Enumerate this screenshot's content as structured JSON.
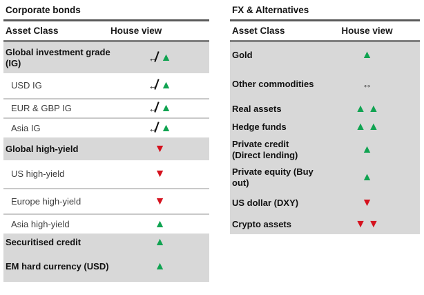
{
  "colors": {
    "green": "#10a351",
    "red": "#d5121e",
    "section_row_bg": "#d8d8d8",
    "title_rule": "#5a5a5a",
    "header_rule": "#7f7f7f",
    "sub_separator": "#c9c9c9"
  },
  "icons": {
    "up_triangle": "▲",
    "down_triangle": "▼",
    "neutral_arrow": "↔"
  },
  "tables": [
    {
      "title": "Corporate bonds",
      "columns": {
        "asset": "Asset Class",
        "view": "House view"
      },
      "rows": [
        {
          "label": "Global investment grade (IG)",
          "style": "section",
          "view": "neutral-to-up",
          "sep": false
        },
        {
          "label": "USD IG",
          "style": "sub",
          "view": "neutral-to-up",
          "sep": true
        },
        {
          "label": "EUR & GBP IG",
          "style": "sub",
          "view": "neutral-to-up",
          "sep": true
        },
        {
          "label": "Asia IG",
          "style": "sub",
          "view": "neutral-to-up",
          "sep": false
        },
        {
          "label": "Global high-yield",
          "style": "section",
          "view": "down",
          "sep": false
        },
        {
          "label": "US high-yield",
          "style": "sub",
          "view": "down",
          "sep": true
        },
        {
          "label": "Europe high-yield",
          "style": "sub",
          "view": "down",
          "sep": true
        },
        {
          "label": "Asia high-yield",
          "style": "sub",
          "view": "up",
          "sep": false
        },
        {
          "label": "Securitised credit",
          "style": "section",
          "view": "up",
          "sep": false
        },
        {
          "label": "EM hard currency (USD)",
          "style": "section",
          "view": "up",
          "sep": false
        }
      ]
    },
    {
      "title": "FX & Alternatives",
      "columns": {
        "asset": "Asset Class",
        "view": "House view"
      },
      "rows": [
        {
          "label": "Gold",
          "style": "section",
          "view": "up",
          "sep": false
        },
        {
          "label": "Other commodities",
          "style": "section",
          "view": "neutral",
          "sep": false
        },
        {
          "label": "Real assets",
          "style": "section",
          "view": "double-up",
          "sep": false
        },
        {
          "label": "Hedge funds",
          "style": "section",
          "view": "double-up",
          "sep": false
        },
        {
          "label": "Private credit (Direct lending)",
          "style": "section",
          "view": "up",
          "sep": false
        },
        {
          "label": "Private equity (Buy out)",
          "style": "section",
          "view": "up",
          "sep": false
        },
        {
          "label": "US dollar (DXY)",
          "style": "section",
          "view": "down",
          "sep": false
        },
        {
          "label": "Crypto assets",
          "style": "section",
          "view": "double-down",
          "sep": false
        }
      ]
    }
  ]
}
